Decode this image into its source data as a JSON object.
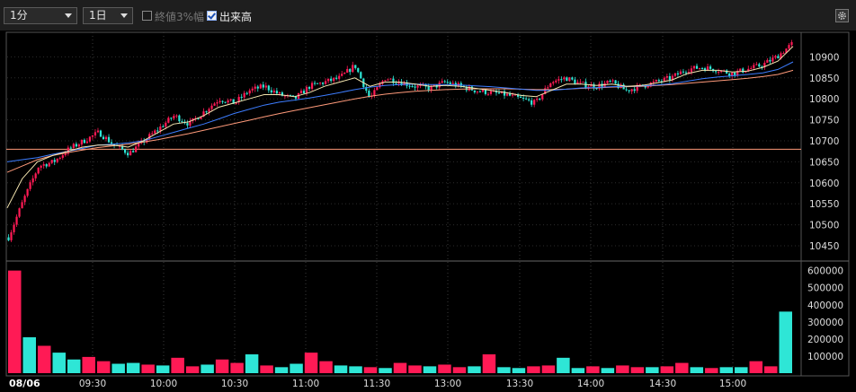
{
  "toolbar": {
    "interval": "1分",
    "range": "1日",
    "opt1_label": "終値3%幅",
    "opt1_checked": false,
    "opt2_label": "出来高",
    "opt2_checked": true,
    "settings_icon": "gear-icon"
  },
  "colors": {
    "up": "#ff1a55",
    "down": "#2ee6d6",
    "ma_short": "#f5e6b0",
    "ma_mid": "#3d7dff",
    "ma_long": "#ff9a7a",
    "ref_line": "#ff9a7a"
  },
  "chart_data": [
    {
      "type": "candlestick",
      "date_label": "08/06",
      "x_ticks": [
        "09:30",
        "10:00",
        "10:30",
        "11:00",
        "11:30",
        "13:00",
        "13:30",
        "14:00",
        "14:30",
        "15:00"
      ],
      "y_ticks": [
        10450,
        10500,
        10550,
        10600,
        10650,
        10700,
        10750,
        10800,
        10850,
        10900
      ],
      "ylim": [
        10420,
        10950
      ],
      "reference_line": 10680,
      "grid": true,
      "price_path": [
        10470,
        10560,
        10640,
        10650,
        10680,
        10700,
        10720,
        10690,
        10670,
        10700,
        10730,
        10760,
        10740,
        10770,
        10800,
        10790,
        10820,
        10830,
        10810,
        10800,
        10830,
        10840,
        10850,
        10880,
        10800,
        10850,
        10840,
        10830,
        10825,
        10840,
        10830,
        10820,
        10815,
        10810,
        10800,
        10790,
        10840,
        10850,
        10835,
        10830,
        10840,
        10820,
        10830,
        10840,
        10850,
        10870,
        10875,
        10870,
        10860,
        10870,
        10880,
        10900,
        10930
      ],
      "ma_short_path": [
        10540,
        10610,
        10650,
        10665,
        10675,
        10685,
        10690,
        10690,
        10685,
        10700,
        10720,
        10740,
        10745,
        10760,
        10780,
        10790,
        10800,
        10810,
        10810,
        10805,
        10815,
        10830,
        10840,
        10850,
        10830,
        10840,
        10840,
        10835,
        10830,
        10832,
        10830,
        10825,
        10820,
        10815,
        10808,
        10805,
        10820,
        10835,
        10835,
        10832,
        10835,
        10830,
        10832,
        10838,
        10845,
        10860,
        10868,
        10868,
        10864,
        10866,
        10875,
        10890,
        10925
      ],
      "ma_mid_path": [
        10650,
        10655,
        10660,
        10668,
        10675,
        10682,
        10690,
        10692,
        10695,
        10700,
        10710,
        10720,
        10730,
        10740,
        10752,
        10765,
        10775,
        10785,
        10792,
        10797,
        10802,
        10808,
        10815,
        10822,
        10828,
        10832,
        10834,
        10835,
        10834,
        10834,
        10833,
        10831,
        10829,
        10826,
        10823,
        10820,
        10820,
        10823,
        10826,
        10827,
        10829,
        10830,
        10831,
        10833,
        10836,
        10842,
        10848,
        10852,
        10855,
        10858,
        10862,
        10870,
        10888
      ],
      "ma_long_path": [
        10625,
        10640,
        10655,
        10665,
        10672,
        10678,
        10684,
        10688,
        10692,
        10697,
        10703,
        10710,
        10717,
        10725,
        10733,
        10741,
        10749,
        10757,
        10765,
        10772,
        10779,
        10786,
        10793,
        10800,
        10806,
        10811,
        10815,
        10818,
        10820,
        10822,
        10823,
        10824,
        10824,
        10824,
        10823,
        10822,
        10822,
        10823,
        10825,
        10826,
        10828,
        10829,
        10830,
        10832,
        10834,
        10837,
        10840,
        10843,
        10846,
        10849,
        10853,
        10858,
        10868
      ]
    },
    {
      "type": "bar",
      "name": "出来高",
      "y_ticks": [
        100000,
        200000,
        300000,
        400000,
        500000,
        600000
      ],
      "ylim": [
        0,
        640000
      ],
      "values": [
        600000,
        210000,
        160000,
        120000,
        80000,
        95000,
        70000,
        55000,
        60000,
        50000,
        45000,
        90000,
        40000,
        50000,
        80000,
        60000,
        110000,
        45000,
        35000,
        55000,
        120000,
        70000,
        45000,
        40000,
        35000,
        30000,
        60000,
        45000,
        40000,
        50000,
        35000,
        40000,
        110000,
        35000,
        30000,
        40000,
        45000,
        90000,
        30000,
        40000,
        30000,
        45000,
        35000,
        35000,
        40000,
        60000,
        35000,
        30000,
        35000,
        35000,
        70000,
        40000,
        360000
      ]
    }
  ]
}
